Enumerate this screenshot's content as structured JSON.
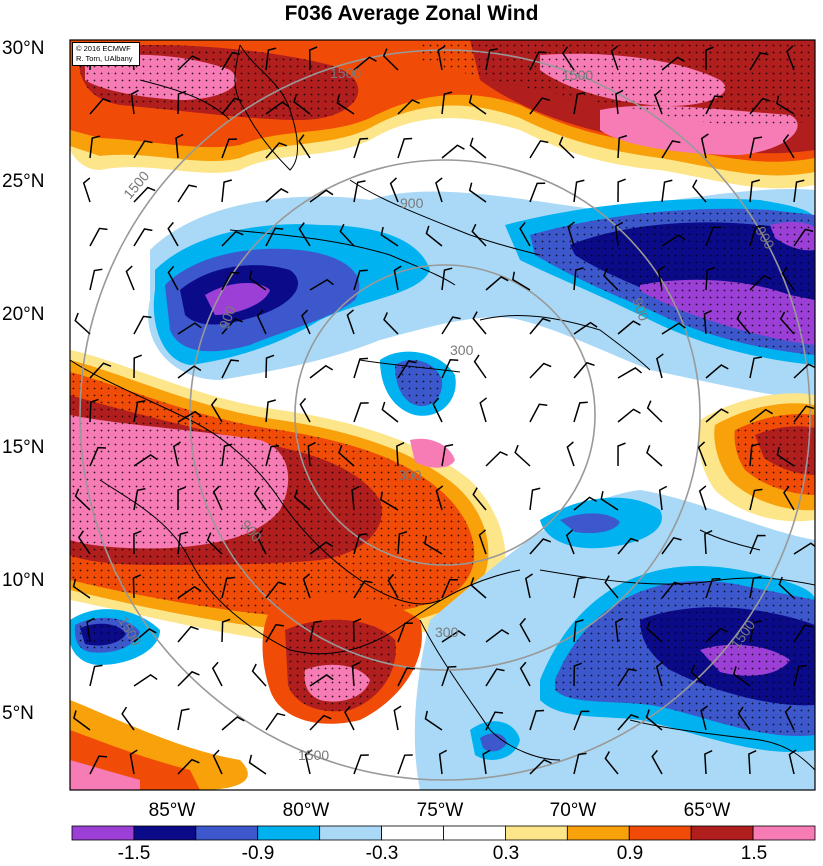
{
  "title": "F036 Average Zonal Wind",
  "credit": {
    "line1": "© 2016 ECMWF",
    "line2": "R. Torn, UAlbany"
  },
  "lat_labels": [
    "30°N",
    "25°N",
    "20°N",
    "15°N",
    "10°N",
    "5°N"
  ],
  "lon_labels": [
    "85°W",
    "80°W",
    "75°W",
    "70°W",
    "65°W"
  ],
  "contour_labels": [
    "1500",
    "1500",
    "1500",
    "900",
    "900",
    "900",
    "900",
    "300",
    "300",
    "900",
    "1500",
    "1500",
    "300",
    "1500"
  ],
  "colorbar": {
    "colors": [
      "#9b3fd6",
      "#0b0b8a",
      "#3c58cc",
      "#00b3f0",
      "#a9d9f6",
      "#ffffff",
      "#ffffff",
      "#fde58a",
      "#f8a10a",
      "#f14c07",
      "#b01e1e",
      "#f77bb5"
    ],
    "labels": [
      "-1.5",
      "-0.9",
      "-0.3",
      "0.3",
      "0.9",
      "1.5"
    ]
  },
  "legend_colors": {
    "purple": "#9b3fd6",
    "navy": "#0b0b8a",
    "blue": "#3c58cc",
    "cyan": "#00b3f0",
    "lightblue": "#a9d9f6",
    "white": "#ffffff",
    "lightyellow": "#fde58a",
    "orange": "#f8a10a",
    "redorange": "#f14c07",
    "darkred": "#b01e1e",
    "pink": "#f77bb5"
  }
}
